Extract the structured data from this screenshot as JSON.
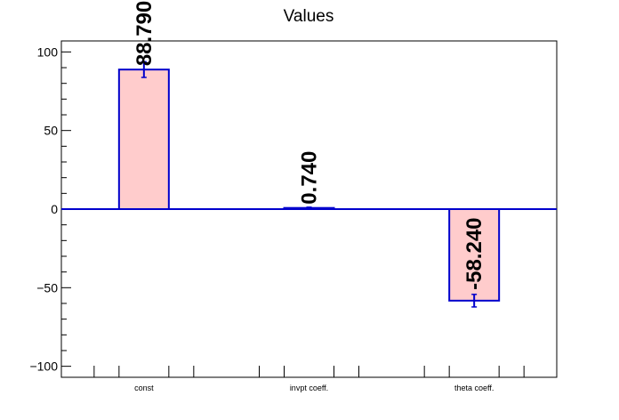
{
  "chart_data": {
    "type": "bar",
    "title": "Values",
    "xlabel": "",
    "ylabel": "",
    "categories": [
      "const",
      "invpt coeff.",
      "theta coeff."
    ],
    "values": [
      88.79,
      0.74,
      -58.24
    ],
    "errors": [
      5,
      0.5,
      4
    ],
    "data_labels": [
      "88.790",
      "0.740",
      "-58.240"
    ],
    "ylim": [
      -107,
      107
    ],
    "yticks": [
      100,
      50,
      0,
      -50,
      -100
    ],
    "ytick_labels": [
      "100",
      "50",
      "0",
      "−50",
      "−100"
    ],
    "grid": false,
    "legend": "none",
    "colors": {
      "bar_fill": "#ffcccc",
      "bar_edge": "#0000cc",
      "axis": "#000000",
      "label": "#000000"
    }
  }
}
